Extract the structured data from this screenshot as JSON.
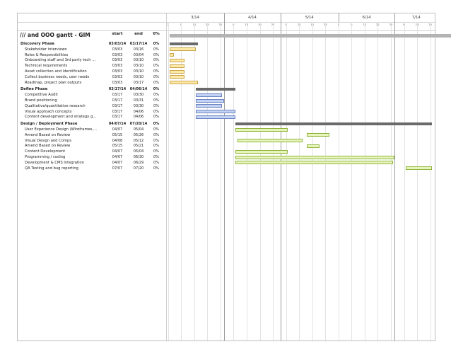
{
  "project": {
    "title": "/// and OOO gantt - GIM",
    "start_label": "start",
    "end_label": "end",
    "pct": "0%"
  },
  "colors": {
    "discovery": "#fde8a6",
    "discovery_border": "#c9a64b",
    "define": "#c3d1f2",
    "define_border": "#6c84c4",
    "design": "#e7f5bc",
    "design_border": "#8fb43a",
    "summary": "#6a6a6a"
  },
  "timeline": {
    "months": [
      "3/14",
      "4/14",
      "5/14",
      "6/14",
      "7/14"
    ],
    "days": [
      "2",
      "9",
      "16",
      "23",
      "30",
      "6",
      "13",
      "20",
      "27",
      "4",
      "11",
      "18",
      "25",
      "1",
      "8",
      "15",
      "22",
      "29",
      "6",
      "13",
      "20"
    ]
  },
  "phases": [
    {
      "name": "Discovery Phase",
      "start": "03/03/14",
      "end": "03/17/14",
      "pct": "0%",
      "color": "discovery",
      "tasks": [
        {
          "name": "Stakeholder interviews",
          "start": "03/03",
          "end": "03/16",
          "pct": "0%"
        },
        {
          "name": "Roles & Responsibilities",
          "start": "03/03",
          "end": "03/04",
          "pct": "0%"
        },
        {
          "name": "Onboarding staff and 3rd party tech ...",
          "start": "03/03",
          "end": "03/10",
          "pct": "0%"
        },
        {
          "name": "Technical requirements",
          "start": "03/03",
          "end": "03/10",
          "pct": "0%"
        },
        {
          "name": "Asset collection and identification",
          "start": "03/03",
          "end": "03/10",
          "pct": "0%"
        },
        {
          "name": "Collect business needs, user needs",
          "start": "03/03",
          "end": "03/10",
          "pct": "0%"
        },
        {
          "name": "Roadmap, project plan outputs",
          "start": "03/03",
          "end": "03/17",
          "pct": "0%"
        }
      ]
    },
    {
      "name": "Define Phase",
      "start": "03/17/14",
      "end": "04/06/14",
      "pct": "0%",
      "color": "define",
      "tasks": [
        {
          "name": "Competitive Audit",
          "start": "03/17",
          "end": "03/30",
          "pct": "0%"
        },
        {
          "name": "Brand positioning",
          "start": "03/17",
          "end": "03/31",
          "pct": "0%"
        },
        {
          "name": "Qualitative/quantitative research",
          "start": "03/17",
          "end": "03/30",
          "pct": "0%"
        },
        {
          "name": "Visual approach concepts",
          "start": "03/17",
          "end": "04/06",
          "pct": "0%"
        },
        {
          "name": "Content development and strategy g...",
          "start": "03/17",
          "end": "04/06",
          "pct": "0%"
        }
      ]
    },
    {
      "name": "Design / Deployment Phase",
      "start": "04/07/14",
      "end": "07/20/14",
      "pct": "0%",
      "color": "design",
      "tasks": [
        {
          "name": "User Experience Design (Wireframes,...",
          "start": "04/07",
          "end": "05/04",
          "pct": "0%"
        },
        {
          "name": "Amend Based on Review",
          "start": "05/15",
          "end": "05/26",
          "pct": "0%"
        },
        {
          "name": "Visual Design and Comps",
          "start": "04/08",
          "end": "05/12",
          "pct": "0%"
        },
        {
          "name": "Amend Based on Review",
          "start": "05/15",
          "end": "05/21",
          "pct": "0%"
        },
        {
          "name": "Content Development",
          "start": "04/07",
          "end": "05/04",
          "pct": "0%"
        },
        {
          "name": "Programming / coding",
          "start": "04/07",
          "end": "06/30",
          "pct": "0%"
        },
        {
          "name": "Development & CMS Integration",
          "start": "04/07",
          "end": "06/29",
          "pct": "0%"
        },
        {
          "name": "QA Testing and bug reporting",
          "start": "07/07",
          "end": "07/20",
          "pct": "0%"
        }
      ]
    }
  ]
}
